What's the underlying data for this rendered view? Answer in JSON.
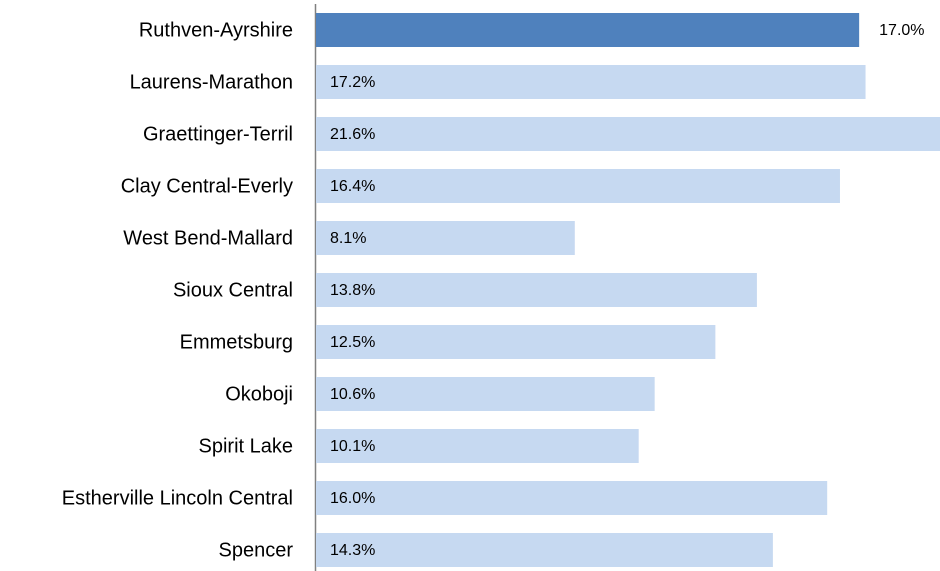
{
  "chart_data": {
    "type": "bar",
    "orientation": "horizontal",
    "categories": [
      "Ruthven-Ayrshire",
      "Laurens-Marathon",
      "Graettinger-Terril",
      "Clay Central-Everly",
      "West Bend-Mallard",
      "Sioux Central",
      "Emmetsburg",
      "Okoboji",
      "Spirit Lake",
      "Estherville Lincoln Central",
      "Spencer"
    ],
    "values": [
      17.0,
      17.2,
      21.6,
      16.4,
      8.1,
      13.8,
      12.5,
      10.6,
      10.1,
      16.0,
      14.3
    ],
    "value_labels": [
      "17.0%",
      "17.2%",
      "21.6%",
      "16.4%",
      "8.1%",
      "13.8%",
      "12.5%",
      "10.6%",
      "10.1%",
      "16.0%",
      "14.3%"
    ],
    "colors": [
      "#4f81bd",
      "#c6d9f1",
      "#c6d9f1",
      "#c6d9f1",
      "#c6d9f1",
      "#c6d9f1",
      "#c6d9f1",
      "#c6d9f1",
      "#c6d9f1",
      "#c6d9f1",
      "#c6d9f1"
    ],
    "xlim": [
      0,
      20
    ]
  }
}
